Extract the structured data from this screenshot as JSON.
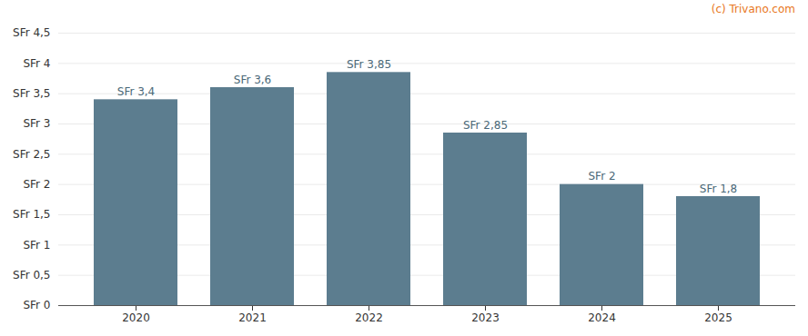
{
  "chart_data": {
    "type": "bar",
    "annotations": [
      "(c) Trivano.com"
    ],
    "categories": [
      "2020",
      "2021",
      "2022",
      "2023",
      "2024",
      "2025"
    ],
    "values": [
      3.4,
      3.6,
      3.85,
      2.85,
      2.0,
      1.8
    ],
    "value_labels": [
      "SFr 3,4",
      "SFr 3,6",
      "SFr 3,85",
      "SFr 2,85",
      "SFr 2",
      "SFr 1,8"
    ],
    "data_labels": true,
    "color": "#5c7d8f",
    "ylim": [
      0,
      4.5
    ],
    "yticks": [
      {
        "value": 0,
        "label": "SFr 0"
      },
      {
        "value": 0.5,
        "label": "SFr 0,5"
      },
      {
        "value": 1.0,
        "label": "SFr 1"
      },
      {
        "value": 1.5,
        "label": "SFr 1,5"
      },
      {
        "value": 2.0,
        "label": "SFr 2"
      },
      {
        "value": 2.5,
        "label": "SFr 2,5"
      },
      {
        "value": 3.0,
        "label": "SFr 3"
      },
      {
        "value": 3.5,
        "label": "SFr 3,5"
      },
      {
        "value": 4.0,
        "label": "SFr 4"
      },
      {
        "value": 4.5,
        "label": "SFr 4,5"
      }
    ],
    "grid": true
  }
}
